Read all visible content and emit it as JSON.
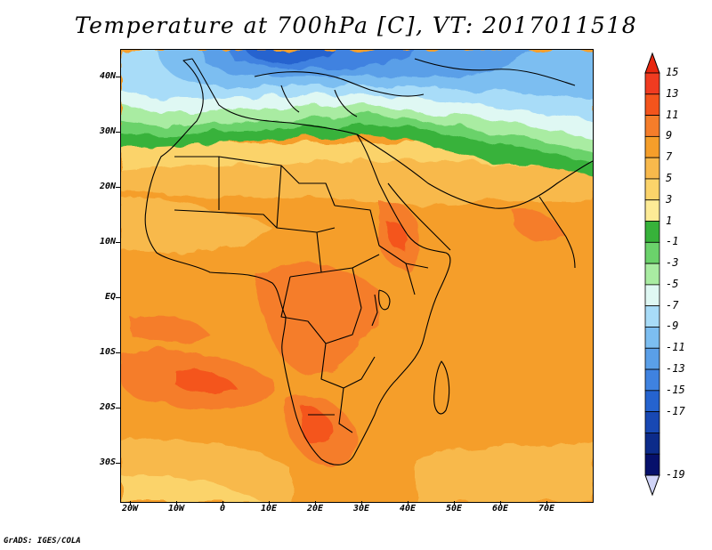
{
  "title": "Temperature at 700hPa [C], VT: 2017011518",
  "credit": "GrADS: IGES/COLA",
  "map": {
    "variable": "Temperature at 700hPa",
    "units": "C",
    "lat_range": [
      -37,
      45
    ],
    "lon_range": [
      -22,
      80
    ],
    "lat_labels": [
      "40N",
      "30N",
      "20N",
      "10N",
      "EQ",
      "10S",
      "20S",
      "30S"
    ],
    "lon_labels": [
      "20W",
      "10W",
      "0",
      "10E",
      "20E",
      "30E",
      "40E",
      "50E",
      "60E",
      "70E"
    ]
  },
  "colorbar": {
    "labels": [
      "15",
      "13",
      "11",
      "9",
      "7",
      "5",
      "3",
      "1",
      "-1",
      "-3",
      "-5",
      "-7",
      "-9",
      "-11",
      "-13",
      "-15",
      "-17",
      "-19"
    ],
    "colors": [
      "#f03b20",
      "#f4541c",
      "#f57d2a",
      "#f59e2a",
      "#f8b94c",
      "#fbd36a",
      "#fdeb96",
      "#37b23a",
      "#6bd26b",
      "#a9eca2",
      "#dff8f3",
      "#a8dcf8",
      "#7cbef1",
      "#5a9fe8",
      "#3f82e0",
      "#2563cf",
      "#1848b3",
      "#0c2b8a",
      "#06106b"
    ],
    "top_arrow_color": "#e8270f",
    "bottom_arrow_color": "#d0d4f8"
  }
}
